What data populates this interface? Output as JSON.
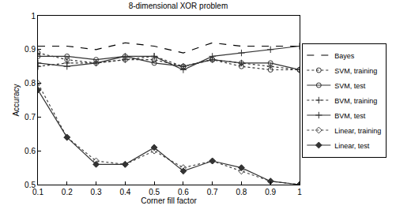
{
  "chart_data": {
    "type": "line",
    "title": "8-dimensional XOR problem",
    "x_label": "Corner fill factor",
    "y_label": "Accuracy",
    "x": [
      0.1,
      0.2,
      0.3,
      0.4,
      0.5,
      0.6,
      0.7,
      0.8,
      0.9,
      1
    ],
    "xlim": [
      0.1,
      1
    ],
    "xticks": [
      0.1,
      0.2,
      0.3,
      0.4,
      0.5,
      0.6,
      0.7,
      0.8,
      0.9,
      1
    ],
    "ylim": [
      0.5,
      1
    ],
    "yticks": [
      0.5,
      0.6,
      0.7,
      0.8,
      0.9,
      1
    ],
    "grid": false,
    "legend": "outside right",
    "series": [
      {
        "name": "Bayes",
        "color": "#000000",
        "line_style": "dash",
        "marker": "none",
        "values": [
          0.91,
          0.91,
          0.9,
          0.92,
          0.91,
          0.89,
          0.92,
          0.91,
          0.91,
          0.91
        ]
      },
      {
        "name": "SVM, training",
        "color": "#333333",
        "line_style": "dot",
        "marker": "circle-open",
        "values": [
          0.89,
          0.87,
          0.86,
          0.87,
          0.87,
          0.85,
          0.87,
          0.85,
          0.84,
          0.84
        ]
      },
      {
        "name": "SVM, test",
        "color": "#333333",
        "line_style": "solid",
        "marker": "circle-open",
        "values": [
          0.88,
          0.88,
          0.87,
          0.88,
          0.86,
          0.85,
          0.87,
          0.86,
          0.86,
          0.84
        ]
      },
      {
        "name": "BVM, training",
        "color": "#333333",
        "line_style": "dot",
        "marker": "cross-thin-open",
        "values": [
          0.85,
          0.86,
          0.86,
          0.87,
          0.88,
          0.85,
          0.87,
          0.86,
          0.85,
          0.84
        ]
      },
      {
        "name": "BVM, test",
        "color": "#333333",
        "line_style": "solid",
        "marker": "cross-thin-open",
        "values": [
          0.86,
          0.85,
          0.86,
          0.88,
          0.88,
          0.84,
          0.88,
          0.89,
          0.9,
          0.91
        ]
      },
      {
        "name": "Linear, training",
        "color": "#444444",
        "line_style": "dot",
        "marker": "diamond-open",
        "values": [
          0.8,
          0.64,
          0.57,
          0.56,
          0.6,
          0.55,
          0.57,
          0.54,
          0.51,
          0.5
        ]
      },
      {
        "name": "Linear, test",
        "color": "#333333",
        "line_style": "solid",
        "marker": "diamond",
        "values": [
          0.78,
          0.64,
          0.56,
          0.56,
          0.61,
          0.54,
          0.57,
          0.55,
          0.51,
          0.5
        ]
      }
    ]
  }
}
